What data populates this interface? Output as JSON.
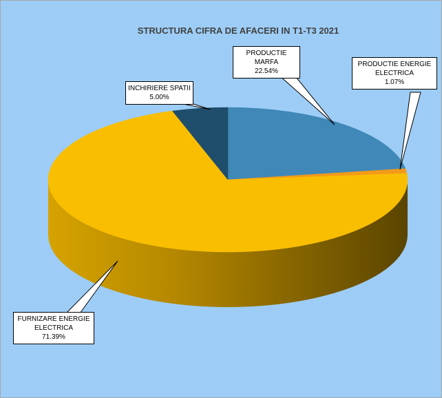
{
  "chart_data": {
    "type": "pie",
    "title": "STRUCTURA  CIFRA DE AFACERI IN T1-T3 2021",
    "categories": [
      "PRODUCTIE MARFA",
      "PRODUCTIE ENERGIE ELECTRICA",
      "FURNIZARE ENERGIE ELECTRICA",
      "INCHIRIERE SPATII"
    ],
    "values": [
      22.54,
      1.07,
      71.39,
      5.0
    ],
    "value_labels": [
      "22.54%",
      "1.07%",
      "71.39%",
      "5.00%"
    ],
    "colors": [
      "#3f88b8",
      "#f29a1a",
      "#f9be00",
      "#1f4e6c"
    ]
  }
}
